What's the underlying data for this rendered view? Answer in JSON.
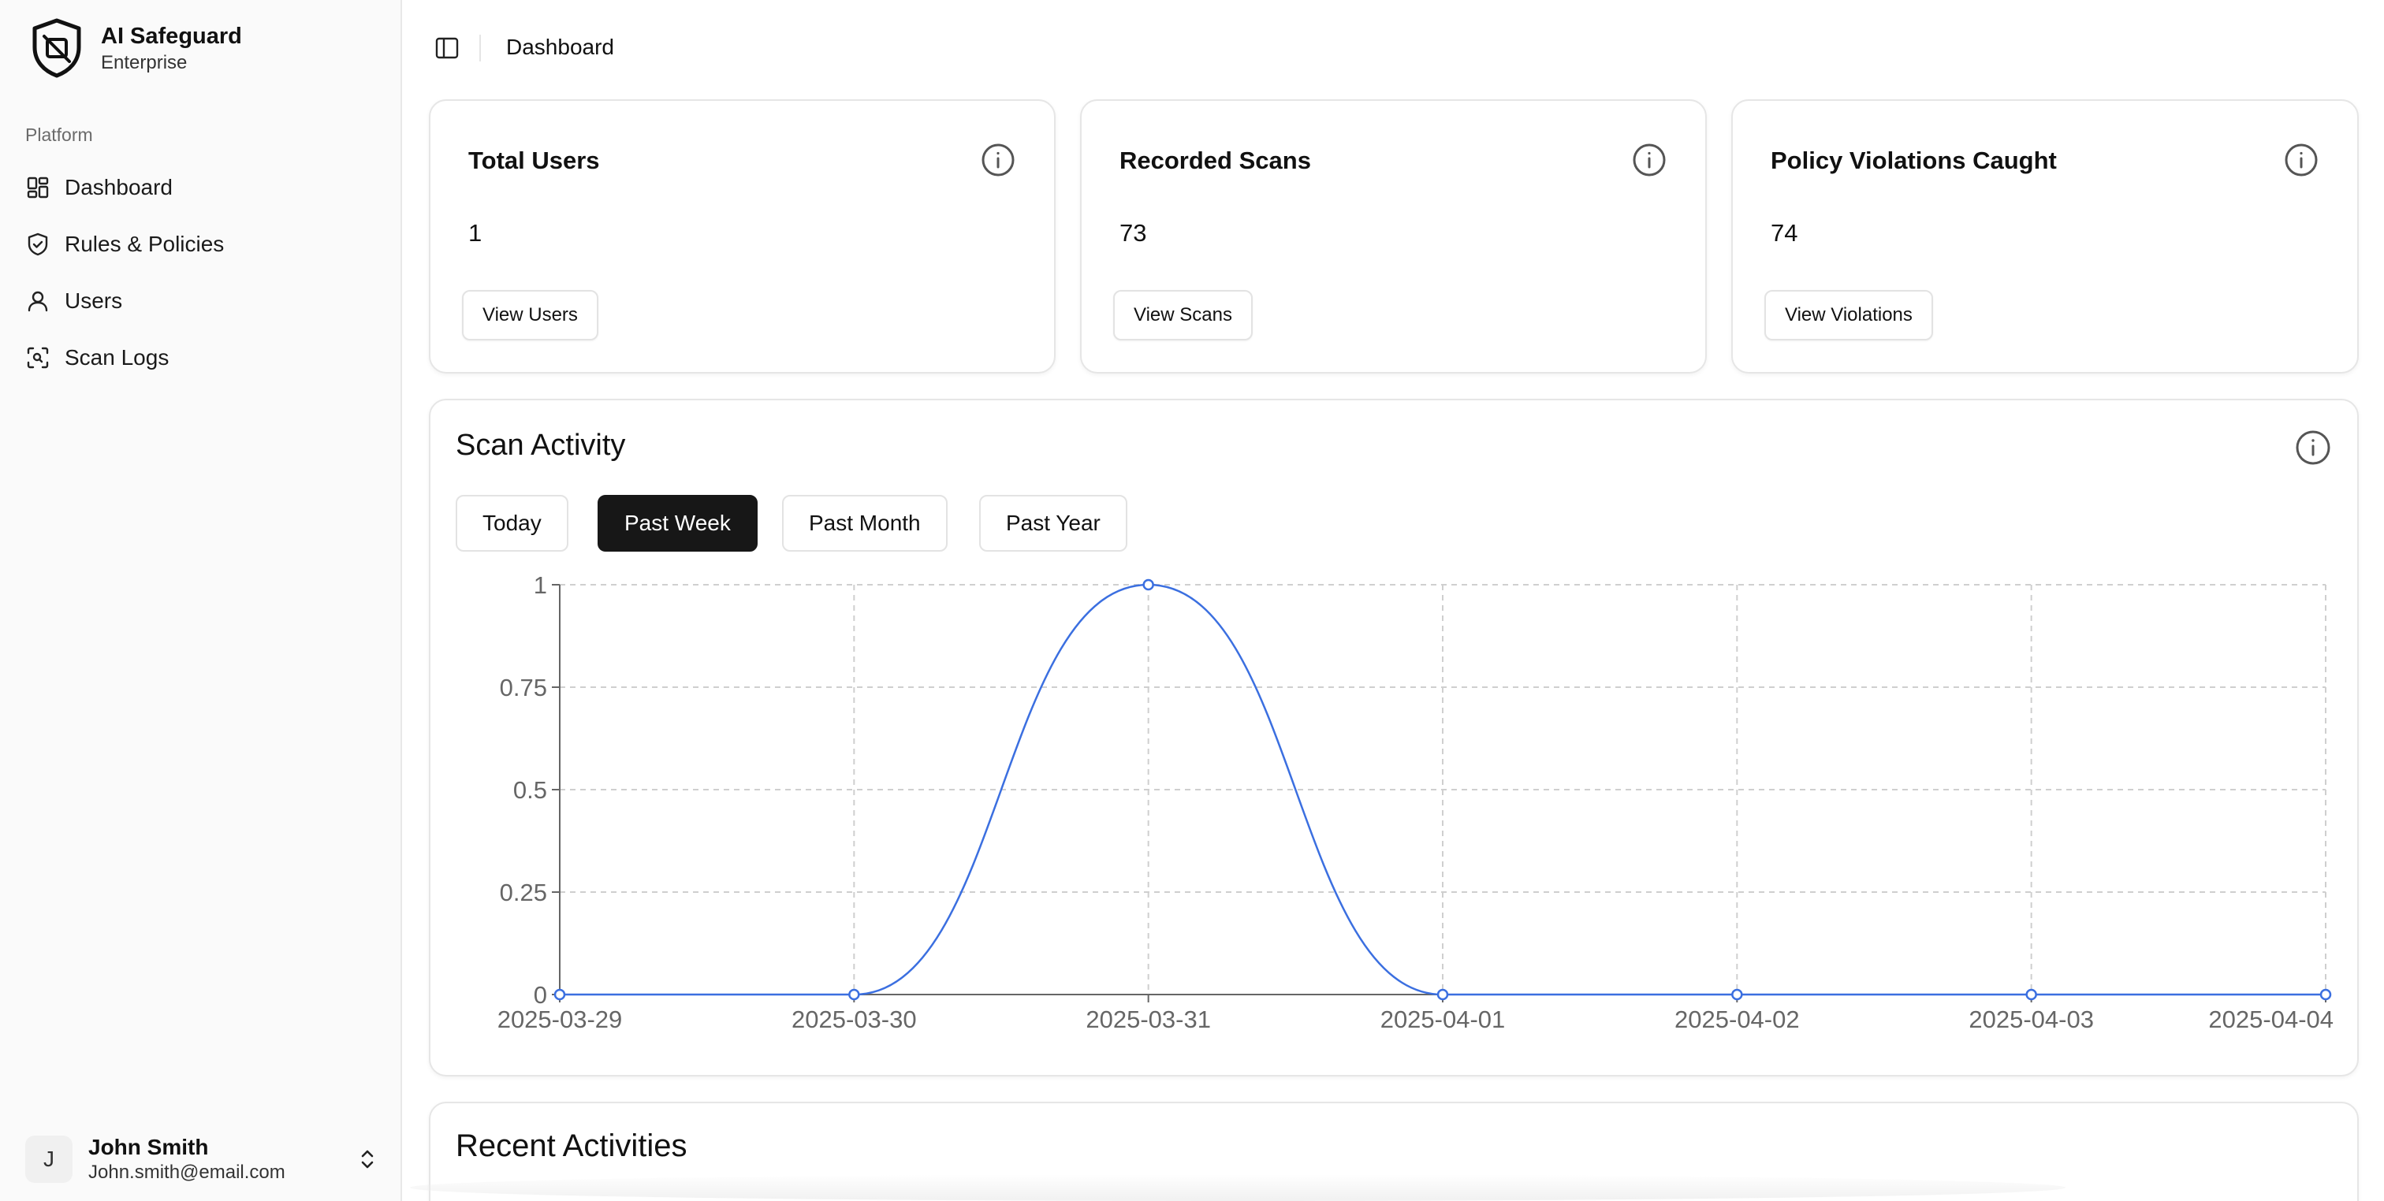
{
  "brand": {
    "name": "AI Safeguard",
    "subtitle": "Enterprise"
  },
  "sidebar": {
    "group_label": "Platform",
    "items": [
      {
        "label": "Dashboard",
        "icon": "dashboard-grid-icon"
      },
      {
        "label": "Rules & Policies",
        "icon": "shield-check-icon"
      },
      {
        "label": "Users",
        "icon": "user-icon"
      },
      {
        "label": "Scan Logs",
        "icon": "scan-icon"
      }
    ]
  },
  "user": {
    "initial": "J",
    "name": "John Smith",
    "email": "John.smith@email.com"
  },
  "topbar": {
    "breadcrumb": "Dashboard"
  },
  "stats": [
    {
      "title": "Total Users",
      "value": "1",
      "button": "View Users"
    },
    {
      "title": "Recorded Scans",
      "value": "73",
      "button": "View Scans"
    },
    {
      "title": "Policy Violations Caught",
      "value": "74",
      "button": "View Violations"
    }
  ],
  "scan_activity": {
    "title": "Scan Activity",
    "ranges": [
      "Today",
      "Past Week",
      "Past Month",
      "Past Year"
    ],
    "selected_range": "Past Week"
  },
  "recent": {
    "title": "Recent Activities"
  },
  "colors": {
    "accent_line": "#3b6fe0",
    "active_button": "#171717"
  },
  "chart_data": {
    "type": "line",
    "x": [
      "2025-03-29",
      "2025-03-30",
      "2025-03-31",
      "2025-04-01",
      "2025-04-02",
      "2025-04-03",
      "2025-04-04"
    ],
    "series": [
      {
        "values": [
          0,
          0,
          1,
          0,
          0,
          0,
          0
        ]
      }
    ],
    "yticks": [
      "0",
      "0.25",
      "0.5",
      "0.75",
      "1"
    ],
    "ylim": [
      0,
      1
    ],
    "grid": true,
    "curve": "smooth"
  }
}
